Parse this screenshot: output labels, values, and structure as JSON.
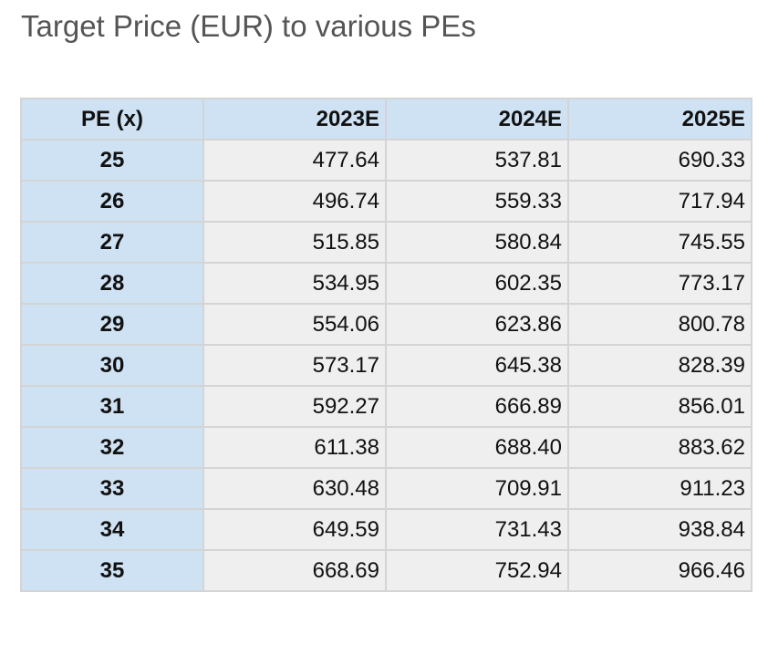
{
  "title": "Target Price (EUR) to various PEs",
  "colors": {
    "header_bg": "#cfe2f3",
    "cell_bg": "#efefef",
    "border": "#d4d4d4",
    "title_text": "#555555"
  },
  "chart_data": {
    "type": "table",
    "title": "Target Price (EUR) to various PEs",
    "columns": [
      "PE (x)",
      "2023E",
      "2024E",
      "2025E"
    ],
    "rows": [
      [
        "25",
        "477.64",
        "537.81",
        "690.33"
      ],
      [
        "26",
        "496.74",
        "559.33",
        "717.94"
      ],
      [
        "27",
        "515.85",
        "580.84",
        "745.55"
      ],
      [
        "28",
        "534.95",
        "602.35",
        "773.17"
      ],
      [
        "29",
        "554.06",
        "623.86",
        "800.78"
      ],
      [
        "30",
        "573.17",
        "645.38",
        "828.39"
      ],
      [
        "31",
        "592.27",
        "666.89",
        "856.01"
      ],
      [
        "32",
        "611.38",
        "688.40",
        "883.62"
      ],
      [
        "33",
        "630.48",
        "709.91",
        "911.23"
      ],
      [
        "34",
        "649.59",
        "731.43",
        "938.84"
      ],
      [
        "35",
        "668.69",
        "752.94",
        "966.46"
      ]
    ]
  }
}
